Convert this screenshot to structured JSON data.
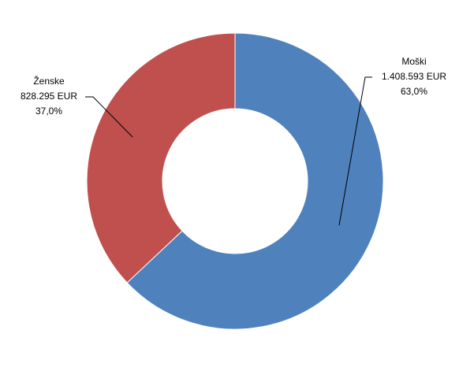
{
  "chart_data": {
    "type": "donut",
    "categories": [
      "Moški",
      "Ženske"
    ],
    "values": [
      1408593,
      828295
    ],
    "value_labels": [
      "1.408.593 EUR",
      "828.295 EUR"
    ],
    "percents": [
      63.0,
      37.0
    ],
    "percent_labels": [
      "63,0%",
      "37,0%"
    ],
    "colors": [
      "#4f81bd",
      "#c0504d"
    ]
  }
}
